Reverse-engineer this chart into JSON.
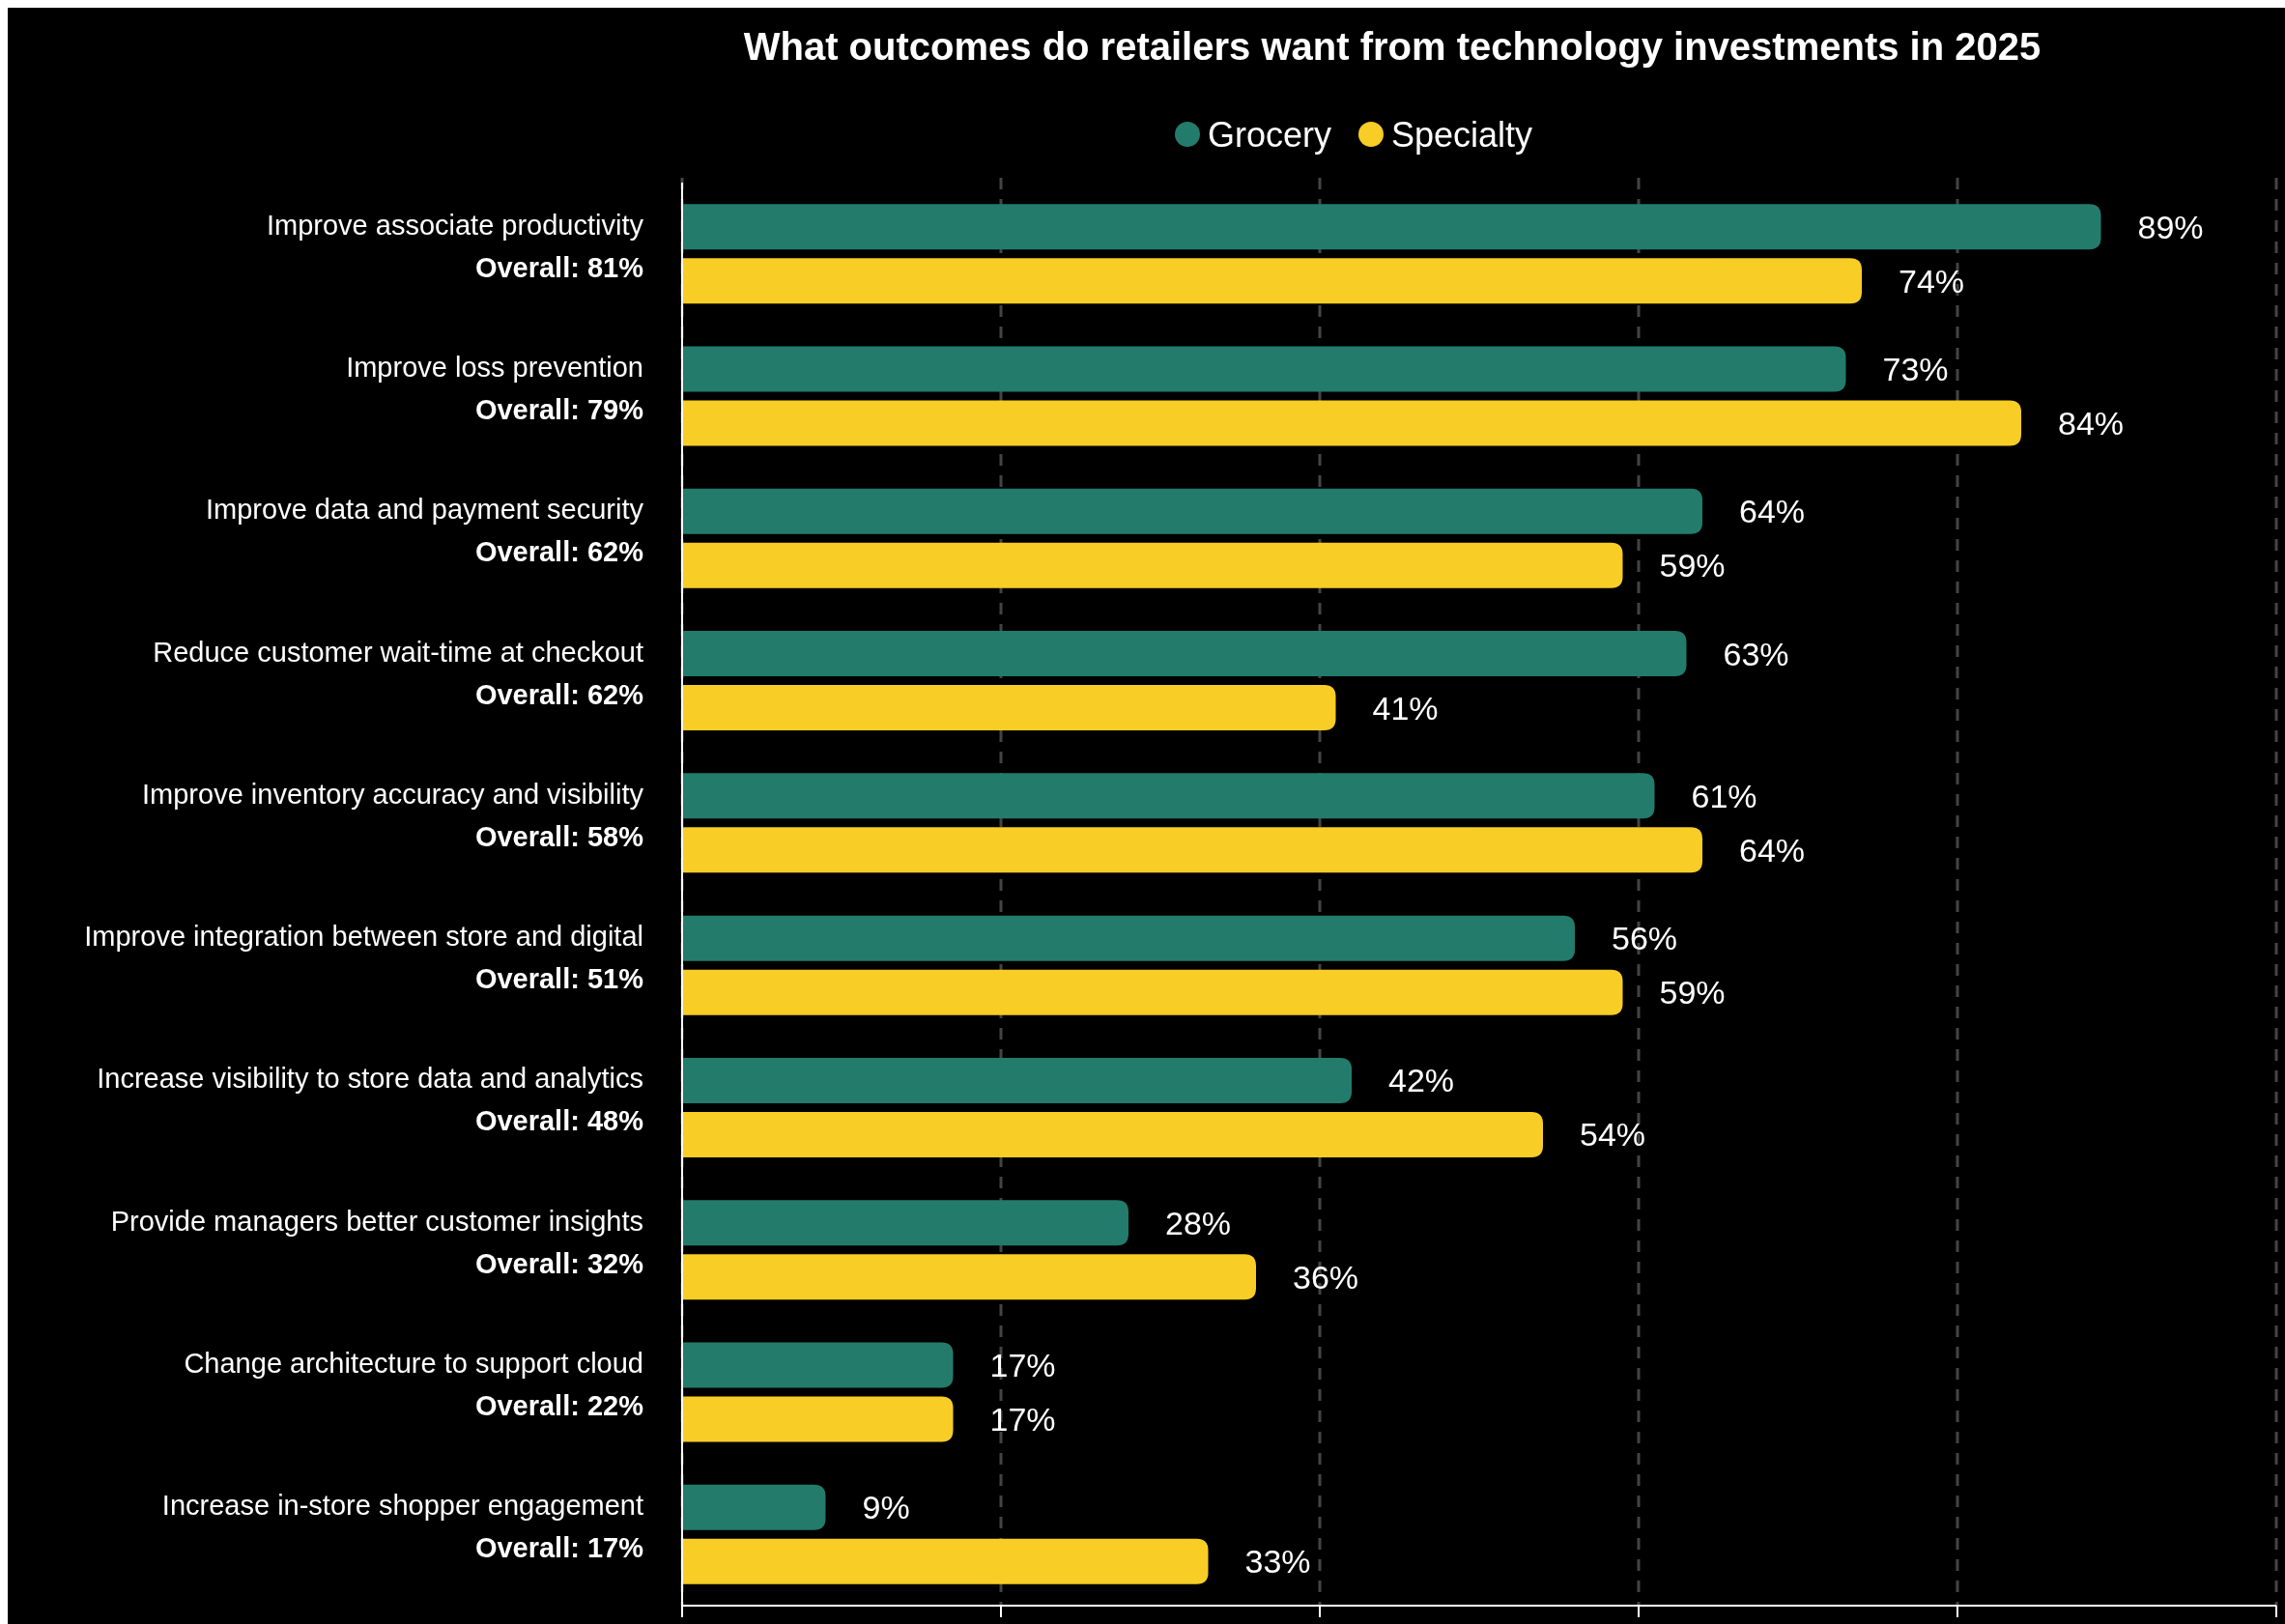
{
  "chart_data": {
    "type": "bar",
    "orientation": "horizontal",
    "title": "What outcomes do retailers want from technology investments in 2025",
    "categories": [
      "Improve associate productivity\nOverall: 81%",
      "Improve loss prevention\nOverall: 79%",
      "Improve data and payment security\nOverall: 62%",
      "Reduce customer wait-time at checkout\nOverall: 62%",
      "Improve inventory accuracy and visibility\nOverall: 58%",
      "Improve integration between store and digital\nOverall: 51%",
      "Increase visibility to store data and analytics\nOverall: 48%",
      "Provide managers better customer insights\nOverall: 32%",
      "Change architecture to support cloud\nOverall: 22%",
      "Increase in-store shopper engagement\nOverall: 17%"
    ],
    "series": [
      {
        "name": "Grocery",
        "color": "#237b6b",
        "values": [
          89,
          73,
          64,
          63,
          61,
          56,
          42,
          28,
          17,
          9
        ],
        "value_labels": [
          "89%",
          "73%",
          "64%",
          "63%",
          "61%",
          "56%",
          "42%",
          "28%",
          "17%",
          "9%"
        ]
      },
      {
        "name": "Specialty",
        "color": "#f8cd25",
        "values": [
          74,
          84,
          59,
          41,
          64,
          59,
          54,
          36,
          17,
          33
        ],
        "value_labels": [
          "74%",
          "84%",
          "59%",
          "41%",
          "64%",
          "59%",
          "54%",
          "36%",
          "17%",
          "33%"
        ]
      }
    ],
    "xlim": [
      0,
      100
    ],
    "xticks": [
      {
        "value": 0,
        "label": null
      },
      {
        "value": 20,
        "label": null
      },
      {
        "value": 40,
        "label": null
      },
      {
        "value": 60,
        "label": null
      },
      {
        "value": 80,
        "label": null
      },
      {
        "value": 100,
        "label": null
      }
    ],
    "grid": "x",
    "legend": "top"
  }
}
